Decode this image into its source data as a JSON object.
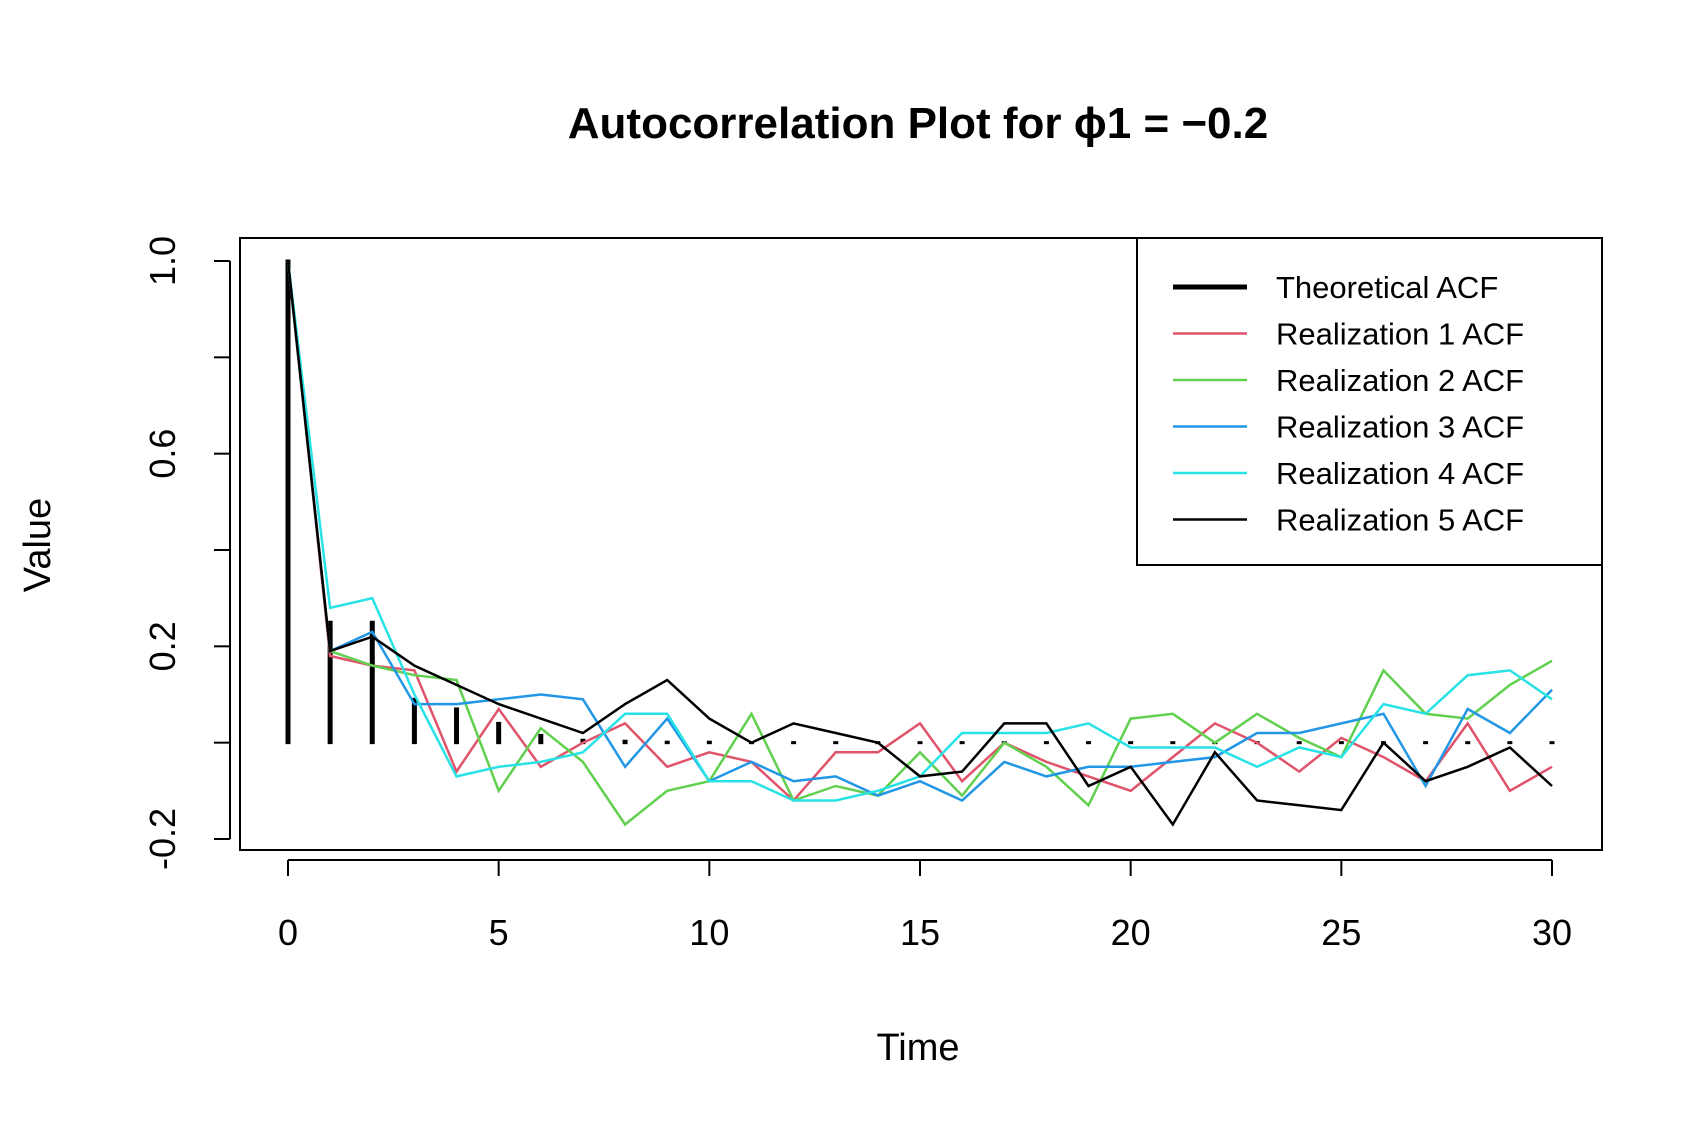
{
  "chart_data": {
    "type": "line",
    "title": "Autocorrelation Plot for ϕ1 = −0.2",
    "xlabel": "Time",
    "ylabel": "Value",
    "xlim": [
      0,
      30
    ],
    "ylim": [
      -0.2,
      1.0
    ],
    "x_ticks": [
      0,
      5,
      10,
      15,
      20,
      25,
      30
    ],
    "x_tick_labels": [
      "0",
      "5",
      "10",
      "15",
      "20",
      "25",
      "30"
    ],
    "y_ticks": [
      -0.2,
      0.0,
      0.2,
      0.4,
      0.6,
      0.8,
      1.0
    ],
    "y_tick_labels": [
      "-0.2",
      "0.2",
      "0.6",
      "1.0"
    ],
    "y_tick_labeled_values": [
      -0.2,
      0.2,
      0.6,
      1.0
    ],
    "grid": false,
    "legend_position": "top-right",
    "theoretical": {
      "name": "Theoretical ACF",
      "color": "#000000",
      "style": "vertical-lines",
      "lags": [
        0,
        1,
        2,
        3,
        4,
        5,
        6,
        7,
        8,
        9,
        10,
        11,
        12,
        13,
        14,
        15,
        16,
        17,
        18,
        19,
        20,
        21,
        22,
        23,
        24,
        25,
        26,
        27,
        28,
        29,
        30
      ],
      "values": [
        1.0,
        0.25,
        0.25,
        0.09,
        0.07,
        0.04,
        0.015,
        0.005,
        0.003,
        0.001,
        0.001,
        0,
        0,
        0,
        0,
        0,
        0,
        0,
        0,
        0,
        0,
        0,
        0,
        0,
        0,
        0,
        0,
        0,
        0,
        0,
        0
      ]
    },
    "series": [
      {
        "name": "Realization 1 ACF",
        "color": "#DF536B",
        "values": [
          1.0,
          0.18,
          0.16,
          0.15,
          -0.06,
          0.07,
          -0.05,
          0.0,
          0.04,
          -0.05,
          -0.02,
          -0.04,
          -0.12,
          -0.02,
          -0.02,
          0.04,
          -0.08,
          0.0,
          -0.04,
          -0.07,
          -0.1,
          -0.03,
          0.04,
          0.0,
          -0.06,
          0.01,
          -0.03,
          -0.08,
          0.04,
          -0.1,
          -0.05
        ]
      },
      {
        "name": "Realization 2 ACF",
        "color": "#61D04F",
        "values": [
          1.0,
          0.19,
          0.16,
          0.14,
          0.13,
          -0.1,
          0.03,
          -0.04,
          -0.17,
          -0.1,
          -0.08,
          0.06,
          -0.12,
          -0.09,
          -0.11,
          -0.02,
          -0.11,
          0.0,
          -0.05,
          -0.13,
          0.05,
          0.06,
          0.0,
          0.06,
          0.01,
          -0.03,
          0.15,
          0.06,
          0.05,
          0.12,
          0.17
        ]
      },
      {
        "name": "Realization 3 ACF",
        "color": "#2297E6",
        "values": [
          1.0,
          0.19,
          0.23,
          0.08,
          0.08,
          0.09,
          0.1,
          0.09,
          -0.05,
          0.05,
          -0.08,
          -0.04,
          -0.08,
          -0.07,
          -0.11,
          -0.08,
          -0.12,
          -0.04,
          -0.07,
          -0.05,
          -0.05,
          -0.04,
          -0.03,
          0.02,
          0.02,
          0.04,
          0.06,
          -0.09,
          0.07,
          0.02,
          0.11
        ]
      },
      {
        "name": "Realization 4 ACF",
        "color": "#28E2E5",
        "values": [
          1.0,
          0.28,
          0.3,
          0.1,
          -0.07,
          -0.05,
          -0.04,
          -0.02,
          0.06,
          0.06,
          -0.08,
          -0.08,
          -0.12,
          -0.12,
          -0.1,
          -0.07,
          0.02,
          0.02,
          0.02,
          0.04,
          -0.01,
          -0.01,
          -0.01,
          -0.05,
          -0.01,
          -0.03,
          0.08,
          0.06,
          0.14,
          0.15,
          0.09
        ]
      },
      {
        "name": "Realization 5 ACF",
        "color": "#000000",
        "values": [
          1.0,
          0.19,
          0.22,
          0.16,
          0.12,
          0.08,
          0.05,
          0.02,
          0.08,
          0.13,
          0.05,
          0.0,
          0.04,
          0.02,
          0.0,
          -0.07,
          -0.06,
          0.04,
          0.04,
          -0.09,
          -0.05,
          -0.17,
          -0.02,
          -0.12,
          -0.13,
          -0.14,
          0.0,
          -0.08,
          -0.05,
          -0.01,
          -0.09
        ]
      }
    ]
  }
}
